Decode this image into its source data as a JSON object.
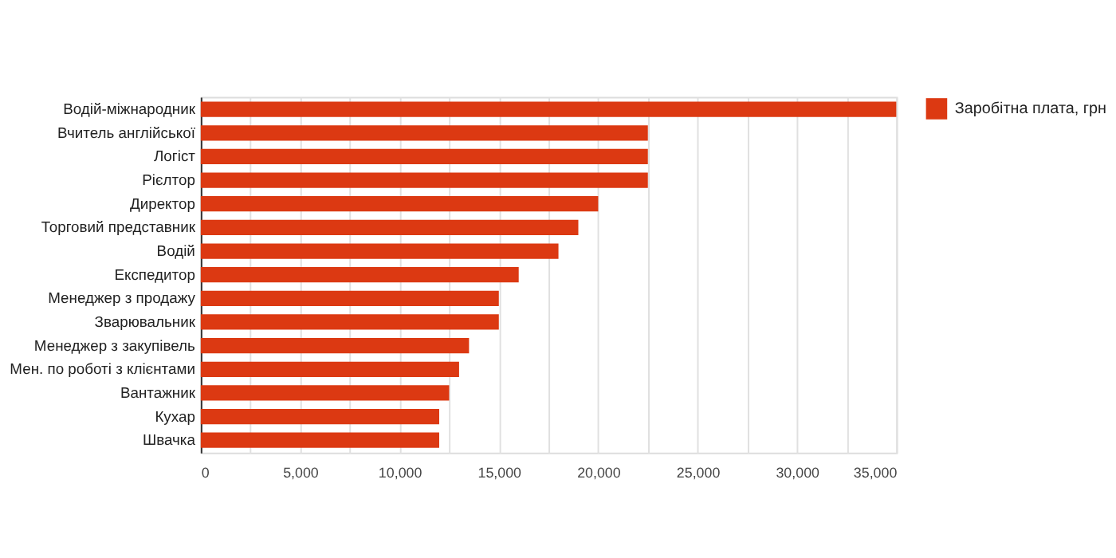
{
  "chart_data": {
    "type": "bar",
    "orientation": "horizontal",
    "categories": [
      "Водій-міжнародник",
      "Вчитель англійської",
      "Логіст",
      "Рієлтор",
      "Директор",
      "Торговий представник",
      "Водій",
      "Експедитор",
      "Менеджер з продажу",
      "Зварювальник",
      "Менеджер з закупівель",
      "Мен. по роботі з клієнтами",
      "Вантажник",
      "Кухар",
      "Швачка"
    ],
    "series": [
      {
        "name": "Заробітна плата, грн",
        "color": "#dc3912",
        "values": [
          35000,
          22500,
          22500,
          22500,
          20000,
          19000,
          18000,
          16000,
          15000,
          15000,
          13500,
          13000,
          12500,
          12000,
          12000
        ]
      }
    ],
    "xlim": [
      0,
      35000
    ],
    "xticks": [
      0,
      {
        "value": 2500,
        "label": null
      },
      {
        "value": 5000,
        "label": "5,000"
      },
      {
        "value": 7500,
        "label": null
      },
      {
        "value": 10000,
        "label": "10,000"
      },
      {
        "value": 12500,
        "label": null
      },
      {
        "value": 15000,
        "label": "15,000"
      },
      {
        "value": 17500,
        "label": null
      },
      {
        "value": 20000,
        "label": "20,000"
      },
      {
        "value": 22500,
        "label": null
      },
      {
        "value": 25000,
        "label": "25,000"
      },
      {
        "value": 27500,
        "label": null
      },
      {
        "value": 30000,
        "label": "30,000"
      },
      {
        "value": 32500,
        "label": null
      },
      {
        "value": 35000,
        "label": "35,000"
      }
    ],
    "grid": "x",
    "legend": "top right"
  }
}
